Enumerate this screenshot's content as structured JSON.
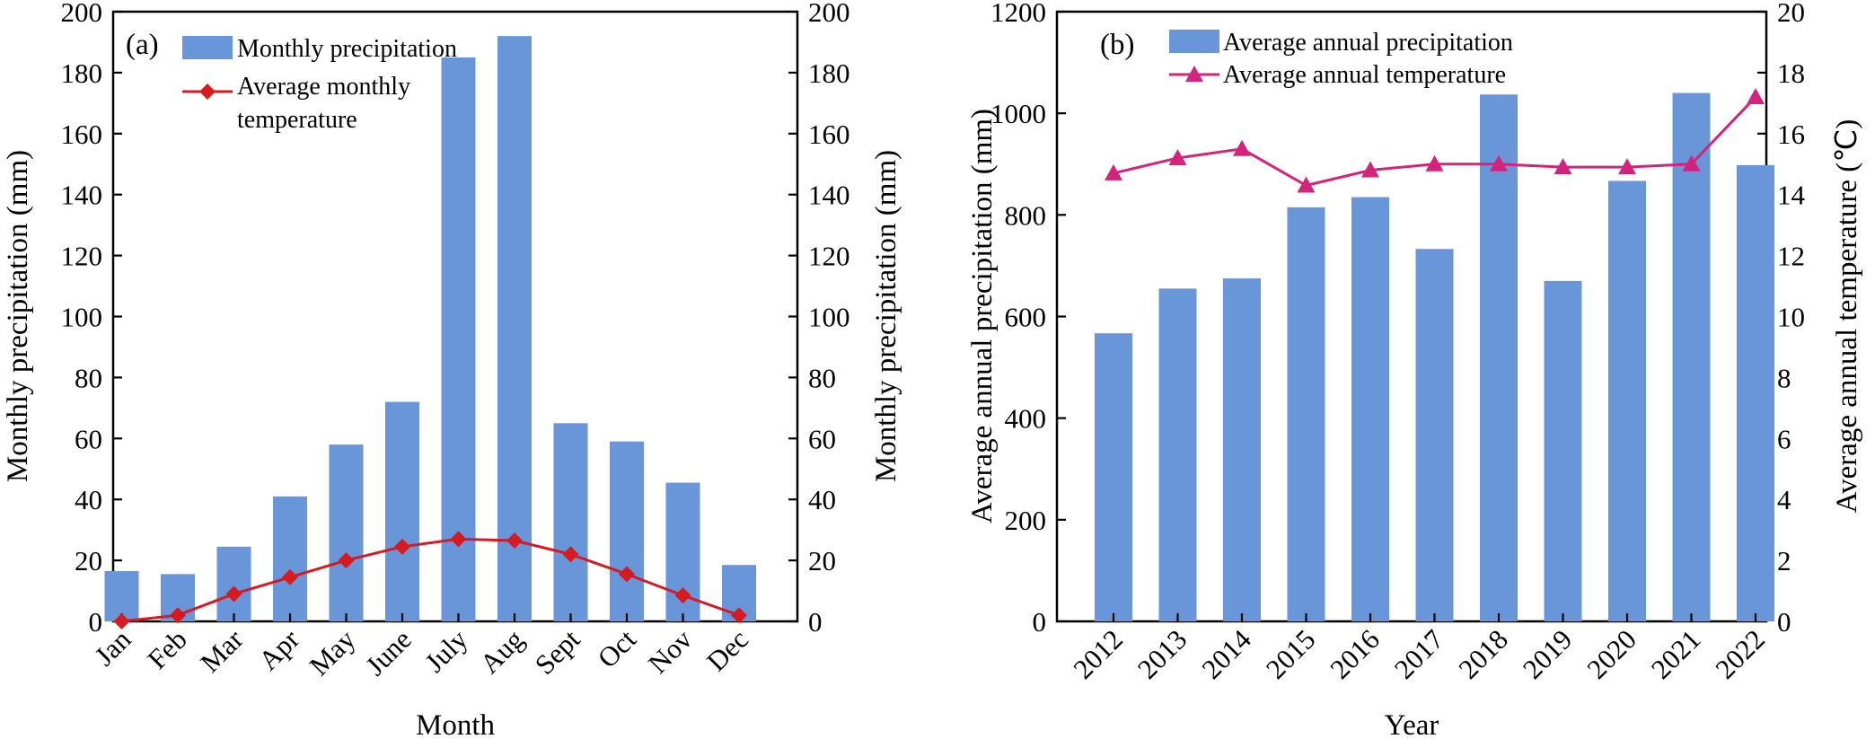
{
  "chart_data": [
    {
      "panel_label": "(a)",
      "type": "bar",
      "categories": [
        "Jan",
        "Feb",
        "Mar",
        "Apr",
        "May",
        "June",
        "July",
        "Aug",
        "Sept",
        "Oct",
        "Nov",
        "Dec"
      ],
      "xlabel": "Month",
      "ylabel": "Monthly precipitation (mm)",
      "ylabel_right": "Monthly precipitation (mm)",
      "ylim": [
        0,
        200
      ],
      "ylim_right": [
        0,
        200
      ],
      "yticks": [
        0,
        20,
        40,
        60,
        80,
        100,
        120,
        140,
        160,
        180,
        200
      ],
      "yticks_right": [
        0,
        20,
        40,
        60,
        80,
        100,
        120,
        140,
        160,
        180,
        200
      ],
      "series": [
        {
          "name": "Monthly precipitation",
          "type": "bar",
          "color": "#6896d8",
          "values": [
            16.5,
            15.5,
            24.5,
            41,
            58,
            72,
            185,
            192,
            65,
            59,
            45.5,
            18.5
          ]
        },
        {
          "name_lines": [
            "Average monthly",
            "temperature"
          ],
          "type": "line",
          "marker": "diamond",
          "color": "#d71920",
          "values": [
            0,
            2,
            9,
            14.5,
            20,
            24.5,
            27,
            26.5,
            22,
            15.5,
            8.5,
            2
          ]
        }
      ],
      "legend_position": "top-left"
    },
    {
      "panel_label": "(b)",
      "type": "bar",
      "categories": [
        "2012",
        "2013",
        "2014",
        "2015",
        "2016",
        "2017",
        "2018",
        "2019",
        "2020",
        "2021",
        "2022"
      ],
      "xlabel": "Year",
      "ylabel": "Average annual precipitation (mm)",
      "ylabel_right": "Average annual temperature (℃)",
      "ylim": [
        0,
        1200
      ],
      "ylim_right": [
        0,
        20
      ],
      "yticks": [
        0,
        200,
        400,
        600,
        800,
        1000,
        1200
      ],
      "yticks_right": [
        0,
        2,
        4,
        6,
        8,
        10,
        12,
        14,
        16,
        18,
        20
      ],
      "series": [
        {
          "name": "Average annual precipitation",
          "type": "bar",
          "color": "#6896d8",
          "values": [
            567,
            655,
            675,
            815,
            835,
            733,
            1037,
            670,
            867,
            1040,
            898
          ]
        },
        {
          "name": "Average annual temperature",
          "type": "line",
          "marker": "triangle",
          "color": "#d4237d",
          "axis": "right",
          "values": [
            14.7,
            15.2,
            15.5,
            14.3,
            14.8,
            15.0,
            15.0,
            14.9,
            14.9,
            15.0,
            17.2
          ]
        }
      ],
      "legend_position": "top-left"
    }
  ]
}
